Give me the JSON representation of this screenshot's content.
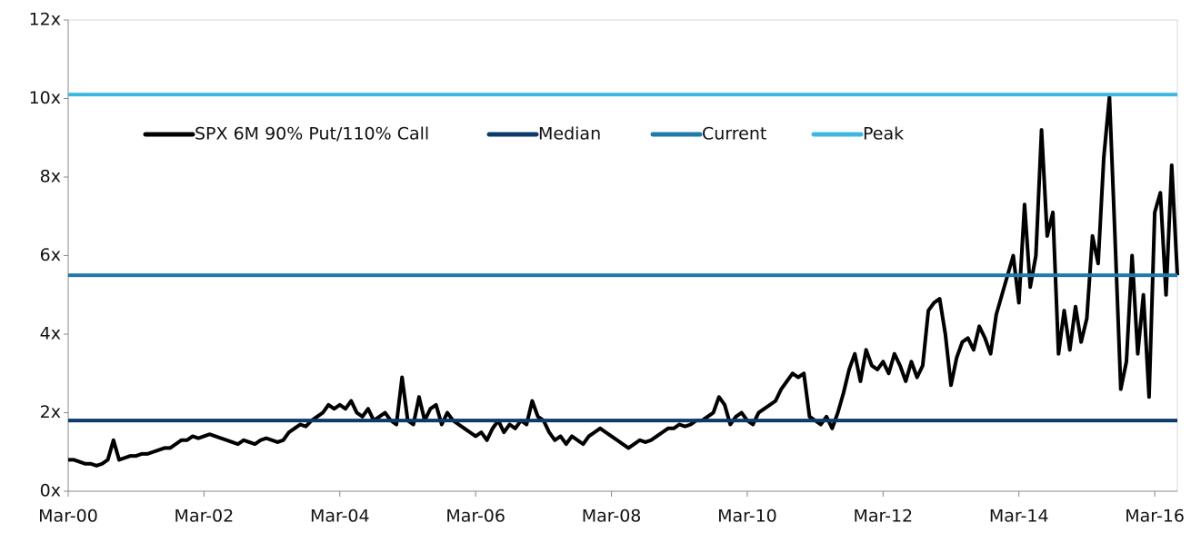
{
  "chart_data": {
    "type": "line",
    "x": [
      "Mar-00",
      "Apr-00",
      "May-00",
      "Jun-00",
      "Jul-00",
      "Aug-00",
      "Sep-00",
      "Oct-00",
      "Nov-00",
      "Dec-00",
      "Jan-01",
      "Feb-01",
      "Mar-01",
      "Apr-01",
      "May-01",
      "Jun-01",
      "Jul-01",
      "Aug-01",
      "Sep-01",
      "Oct-01",
      "Nov-01",
      "Dec-01",
      "Jan-02",
      "Feb-02",
      "Mar-02",
      "Apr-02",
      "May-02",
      "Jun-02",
      "Jul-02",
      "Aug-02",
      "Sep-02",
      "Oct-02",
      "Nov-02",
      "Dec-02",
      "Jan-03",
      "Feb-03",
      "Mar-03",
      "Apr-03",
      "May-03",
      "Jun-03",
      "Jul-03",
      "Aug-03",
      "Sep-03",
      "Oct-03",
      "Nov-03",
      "Dec-03",
      "Jan-04",
      "Feb-04",
      "Mar-04",
      "Apr-04",
      "May-04",
      "Jun-04",
      "Jul-04",
      "Aug-04",
      "Sep-04",
      "Oct-04",
      "Nov-04",
      "Dec-04",
      "Jan-05",
      "Feb-05",
      "Mar-05",
      "Apr-05",
      "May-05",
      "Jun-05",
      "Jul-05",
      "Aug-05",
      "Sep-05",
      "Oct-05",
      "Nov-05",
      "Dec-05",
      "Jan-06",
      "Feb-06",
      "Mar-06",
      "Apr-06",
      "May-06",
      "Jun-06",
      "Jul-06",
      "Aug-06",
      "Sep-06",
      "Oct-06",
      "Nov-06",
      "Dec-06",
      "Jan-07",
      "Feb-07",
      "Mar-07",
      "Apr-07",
      "May-07",
      "Jun-07",
      "Jul-07",
      "Aug-07",
      "Sep-07",
      "Oct-07",
      "Nov-07",
      "Dec-07",
      "Jan-08",
      "Feb-08",
      "Mar-08",
      "Apr-08",
      "May-08",
      "Jun-08",
      "Jul-08",
      "Aug-08",
      "Sep-08",
      "Oct-08",
      "Nov-08",
      "Dec-08",
      "Jan-09",
      "Feb-09",
      "Mar-09",
      "Apr-09",
      "May-09",
      "Jun-09",
      "Jul-09",
      "Aug-09",
      "Sep-09",
      "Oct-09",
      "Nov-09",
      "Dec-09",
      "Jan-10",
      "Feb-10",
      "Mar-10",
      "Apr-10",
      "May-10",
      "Jun-10",
      "Jul-10",
      "Aug-10",
      "Sep-10",
      "Oct-10",
      "Nov-10",
      "Dec-10",
      "Jan-11",
      "Feb-11",
      "Mar-11",
      "Apr-11",
      "May-11",
      "Jun-11",
      "Jul-11",
      "Aug-11",
      "Sep-11",
      "Oct-11",
      "Nov-11",
      "Dec-11",
      "Jan-12",
      "Feb-12",
      "Mar-12",
      "Apr-12",
      "May-12",
      "Jun-12",
      "Jul-12",
      "Aug-12",
      "Sep-12",
      "Oct-12",
      "Nov-12",
      "Dec-12",
      "Jan-13",
      "Feb-13",
      "Mar-13",
      "Apr-13",
      "May-13",
      "Jun-13",
      "Jul-13",
      "Aug-13",
      "Sep-13",
      "Oct-13",
      "Nov-13",
      "Dec-13",
      "Jan-14",
      "Feb-14",
      "Mar-14",
      "Apr-14",
      "May-14",
      "Jun-14",
      "Jul-14",
      "Aug-14",
      "Sep-14",
      "Oct-14",
      "Nov-14",
      "Dec-14",
      "Jan-15",
      "Feb-15",
      "Mar-15",
      "Apr-15",
      "May-15",
      "Jun-15",
      "Jul-15",
      "Aug-15",
      "Sep-15",
      "Oct-15",
      "Nov-15",
      "Dec-15",
      "Jan-16",
      "Feb-16",
      "Mar-16",
      "Apr-16",
      "May-16",
      "Jun-16",
      "Jul-16"
    ],
    "series": [
      {
        "name": "SPX 6M 90% Put/110% Call",
        "color": "#000000",
        "values": [
          0.8,
          0.8,
          0.75,
          0.7,
          0.7,
          0.65,
          0.7,
          0.8,
          1.3,
          0.8,
          0.85,
          0.9,
          0.9,
          0.95,
          0.95,
          1.0,
          1.05,
          1.1,
          1.1,
          1.2,
          1.3,
          1.3,
          1.4,
          1.35,
          1.4,
          1.45,
          1.4,
          1.35,
          1.3,
          1.25,
          1.2,
          1.3,
          1.25,
          1.2,
          1.3,
          1.35,
          1.3,
          1.25,
          1.3,
          1.5,
          1.6,
          1.7,
          1.65,
          1.8,
          1.9,
          2.0,
          2.2,
          2.1,
          2.2,
          2.1,
          2.3,
          2.0,
          1.9,
          2.1,
          1.8,
          1.9,
          2.0,
          1.8,
          1.7,
          2.9,
          1.8,
          1.7,
          2.4,
          1.8,
          2.1,
          2.2,
          1.7,
          2.0,
          1.8,
          1.7,
          1.6,
          1.5,
          1.4,
          1.5,
          1.3,
          1.6,
          1.8,
          1.5,
          1.7,
          1.6,
          1.8,
          1.7,
          2.3,
          1.9,
          1.8,
          1.5,
          1.3,
          1.4,
          1.2,
          1.4,
          1.3,
          1.2,
          1.4,
          1.5,
          1.6,
          1.5,
          1.4,
          1.3,
          1.2,
          1.1,
          1.2,
          1.3,
          1.25,
          1.3,
          1.4,
          1.5,
          1.6,
          1.6,
          1.7,
          1.65,
          1.7,
          1.8,
          1.8,
          1.9,
          2.0,
          2.4,
          2.2,
          1.7,
          1.9,
          2.0,
          1.8,
          1.7,
          2.0,
          2.1,
          2.2,
          2.3,
          2.6,
          2.8,
          3.0,
          2.9,
          3.0,
          1.9,
          1.8,
          1.7,
          1.9,
          1.6,
          2.0,
          2.5,
          3.1,
          3.5,
          2.8,
          3.6,
          3.2,
          3.1,
          3.3,
          3.0,
          3.5,
          3.2,
          2.8,
          3.3,
          2.9,
          3.2,
          4.6,
          4.8,
          4.9,
          4.0,
          2.7,
          3.4,
          3.8,
          3.9,
          3.6,
          4.2,
          3.9,
          3.5,
          4.5,
          5.0,
          5.5,
          6.0,
          4.8,
          7.3,
          5.2,
          6.0,
          9.2,
          6.5,
          7.1,
          3.5,
          4.6,
          3.6,
          4.7,
          3.8,
          4.4,
          6.5,
          5.8,
          8.5,
          10.05,
          6.4,
          2.6,
          3.3,
          6.0,
          3.5,
          5.0,
          2.4,
          7.1,
          7.6,
          5.0,
          8.3,
          5.5
        ]
      },
      {
        "name": "Median",
        "color": "#0d3a6b",
        "value": 1.8
      },
      {
        "name": "Current",
        "color": "#1f7aa8",
        "value": 5.5
      },
      {
        "name": "Peak",
        "color": "#3fb8e0",
        "value": 10.1
      }
    ],
    "xticks": [
      "Mar-00",
      "Mar-02",
      "Mar-04",
      "Mar-06",
      "Mar-08",
      "Mar-10",
      "Mar-12",
      "Mar-14",
      "Mar-16"
    ],
    "ylim": [
      0,
      12
    ],
    "yticks": [
      {
        "value": 0,
        "label": "0x"
      },
      {
        "value": 2,
        "label": "2x"
      },
      {
        "value": 4,
        "label": "4x"
      },
      {
        "value": 6,
        "label": "6x"
      },
      {
        "value": 8,
        "label": "8x"
      },
      {
        "value": 10,
        "label": "10x"
      },
      {
        "value": 12,
        "label": "12x"
      }
    ]
  }
}
